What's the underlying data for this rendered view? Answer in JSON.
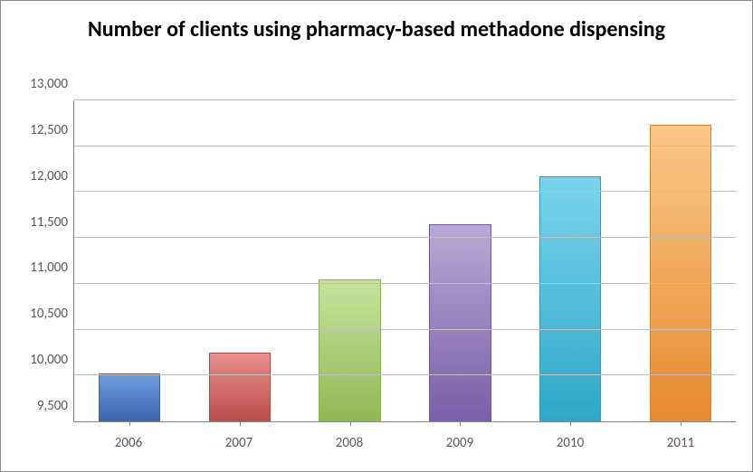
{
  "chart": {
    "type": "bar",
    "title": "Number of clients using pharmacy-based methadone dispensing",
    "title_fontsize": 24,
    "title_fontweight": "bold",
    "categories": [
      "2006",
      "2007",
      "2008",
      "2009",
      "2010",
      "2011"
    ],
    "values": [
      10020,
      10250,
      11050,
      11650,
      12170,
      12730
    ],
    "bar_fill_top": [
      "#6f9de0",
      "#e8918e",
      "#c8e29c",
      "#b9a8d6",
      "#7bd3eb",
      "#fbc88a"
    ],
    "bar_fill_bottom": [
      "#3b66ad",
      "#b94d49",
      "#8fb954",
      "#7760a6",
      "#2da8c8",
      "#e68a2e"
    ],
    "bar_border": [
      "#3a63a8",
      "#b04944",
      "#87b24e",
      "#705a9f",
      "#2a9fbf",
      "#df832a"
    ],
    "bar_width": 0.56,
    "ylim": [
      9500,
      13000
    ],
    "ytick_step": 500,
    "yticks": [
      9500,
      10000,
      10500,
      11000,
      11500,
      12000,
      12500,
      13000
    ],
    "ytick_labels": [
      "9,500",
      "10,000",
      "10,500",
      "11,000",
      "11,500",
      "12,000",
      "12,500",
      "13,000"
    ],
    "axis_label_fontsize": 15,
    "axis_label_color": "#595959",
    "grid_color": "#bfbfbf",
    "axis_line_color": "#888888",
    "background_color": "#ffffff",
    "container_border_color": "#888888"
  }
}
